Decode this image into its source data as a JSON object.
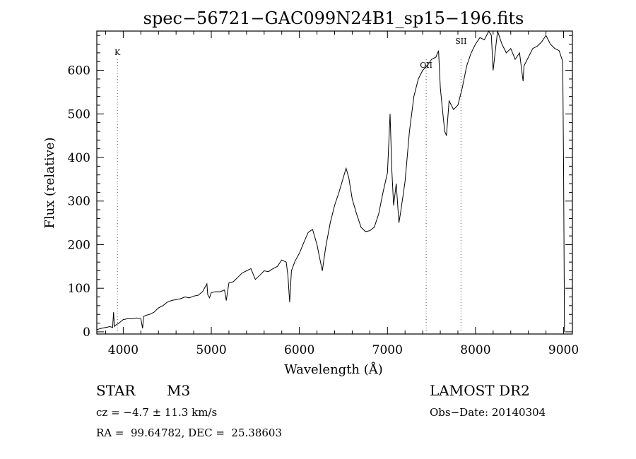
{
  "chart_data": {
    "type": "line",
    "title": "spec−56721−GAC099N24B1_sp15−196.fits",
    "xlabel": "Wavelength (Å)",
    "ylabel": "Flux (relative)",
    "xlim": [
      3700,
      9100
    ],
    "ylim": [
      -5,
      690
    ],
    "xticks": [
      4000,
      5000,
      6000,
      7000,
      8000,
      9000
    ],
    "yticks": [
      0,
      100,
      200,
      300,
      400,
      500,
      600
    ],
    "grid": false,
    "lines": [
      {
        "label": "K",
        "x": 3934
      },
      {
        "label": "OII",
        "x": 7440
      },
      {
        "label": "SII",
        "x": 7835
      }
    ],
    "series": [
      {
        "x": [
          3700,
          3750,
          3800,
          3850,
          3880,
          3890,
          3900,
          3910,
          3950,
          4000,
          4050,
          4100,
          4150,
          4200,
          4220,
          4230,
          4260,
          4300,
          4350,
          4400,
          4450,
          4500,
          4550,
          4600,
          4650,
          4700,
          4750,
          4800,
          4850,
          4900,
          4950,
          4960,
          4980,
          5000,
          5050,
          5100,
          5150,
          5170,
          5200,
          5250,
          5300,
          5350,
          5400,
          5450,
          5500,
          5550,
          5600,
          5650,
          5700,
          5750,
          5800,
          5850,
          5870,
          5890,
          5910,
          5950,
          6000,
          6050,
          6100,
          6150,
          6200,
          6230,
          6260,
          6300,
          6350,
          6400,
          6450,
          6500,
          6530,
          6560,
          6600,
          6650,
          6700,
          6750,
          6800,
          6850,
          6900,
          6950,
          7000,
          7030,
          7050,
          7070,
          7100,
          7130,
          7150,
          7200,
          7250,
          7300,
          7350,
          7400,
          7450,
          7500,
          7550,
          7580,
          7600,
          7620,
          7650,
          7670,
          7700,
          7750,
          7800,
          7850,
          7900,
          7950,
          8000,
          8050,
          8100,
          8150,
          8180,
          8200,
          8250,
          8300,
          8350,
          8400,
          8450,
          8500,
          8540,
          8550,
          8600,
          8650,
          8700,
          8750,
          8800,
          8850,
          8900,
          8950,
          8990,
          9000,
          9010
        ],
        "values": [
          5,
          8,
          10,
          12,
          10,
          45,
          12,
          15,
          20,
          28,
          30,
          30,
          32,
          30,
          8,
          35,
          38,
          40,
          45,
          55,
          60,
          68,
          72,
          74,
          76,
          80,
          78,
          82,
          84,
          92,
          110,
          85,
          78,
          90,
          92,
          92,
          96,
          72,
          112,
          115,
          125,
          135,
          140,
          145,
          120,
          130,
          140,
          138,
          145,
          150,
          165,
          160,
          130,
          68,
          140,
          162,
          180,
          205,
          228,
          235,
          200,
          170,
          140,
          195,
          250,
          290,
          320,
          355,
          375,
          355,
          305,
          270,
          240,
          230,
          232,
          240,
          270,
          320,
          365,
          500,
          370,
          290,
          340,
          250,
          275,
          345,
          460,
          540,
          580,
          600,
          610,
          625,
          630,
          645,
          560,
          520,
          460,
          450,
          530,
          510,
          520,
          560,
          610,
          640,
          660,
          675,
          670,
          690,
          680,
          600,
          690,
          660,
          640,
          650,
          625,
          640,
          575,
          610,
          630,
          650,
          655,
          665,
          680,
          660,
          650,
          645,
          620,
          380,
          0
        ]
      }
    ]
  },
  "info": {
    "object_class": "STAR",
    "subclass": "M3",
    "survey": "LAMOST DR2",
    "cz": "cz = −4.7 ± 11.3 km/s",
    "obs_date": "Obs−Date: 20140304",
    "coords": "RA =  99.64782, DEC =  25.38603"
  }
}
